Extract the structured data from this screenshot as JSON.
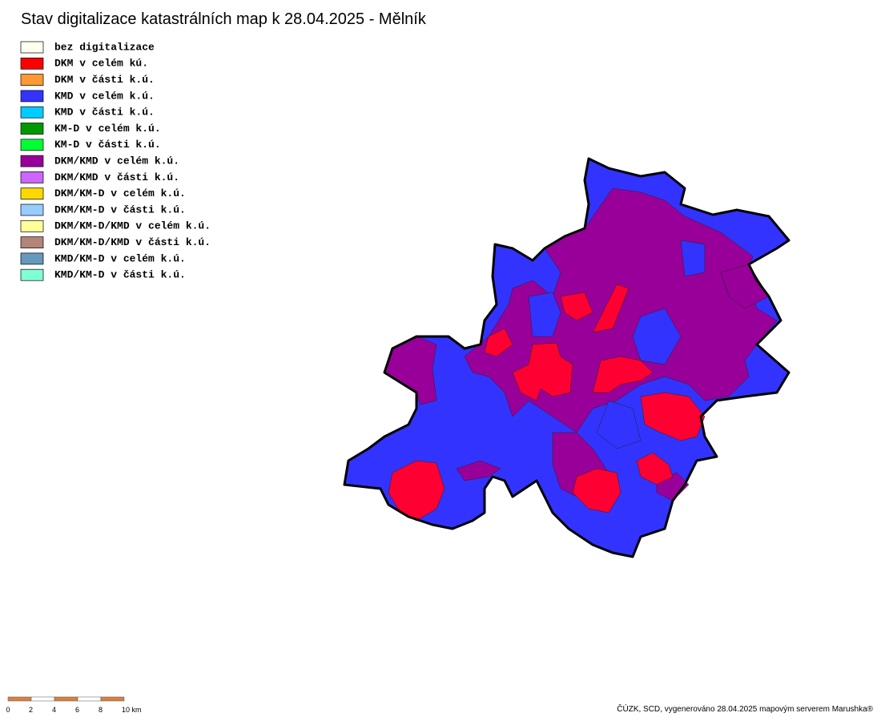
{
  "title": "Stav digitalizace katastrálních map k 28.04.2025 - Mělník",
  "legend": [
    {
      "label": "bez digitalizace",
      "color": "#fffff0"
    },
    {
      "label": "DKM v celém kú.",
      "color": "#ff0000"
    },
    {
      "label": "DKM v části k.ú.",
      "color": "#ff9933"
    },
    {
      "label": "KMD v celém k.ú.",
      "color": "#3333ff"
    },
    {
      "label": "KMD v části k.ú.",
      "color": "#00ccff"
    },
    {
      "label": "KM-D v celém k.ú.",
      "color": "#009900"
    },
    {
      "label": "KM-D v části k.ú.",
      "color": "#00ff33"
    },
    {
      "label": "DKM/KMD v celém k.ú.",
      "color": "#990099"
    },
    {
      "label": "DKM/KMD v části k.ú.",
      "color": "#cc66ff"
    },
    {
      "label": "DKM/KM-D v celém k.ú.",
      "color": "#ffd700"
    },
    {
      "label": "DKM/KM-D v části k.ú.",
      "color": "#99ccff"
    },
    {
      "label": "DKM/KM-D/KMD v celém k.ú.",
      "color": "#ffff99"
    },
    {
      "label": "DKM/KM-D/KMD v části k.ú.",
      "color": "#b3847a"
    },
    {
      "label": "KMD/KM-D v celém k.ú.",
      "color": "#6699bb"
    },
    {
      "label": "KMD/KM-D v části k.ú.",
      "color": "#80ffd4"
    }
  ],
  "scale_bar": {
    "labels": [
      "0",
      "2",
      "4",
      "6",
      "8",
      "10 km"
    ]
  },
  "footer": "ČÚZK, SCD, vygenerováno 28.04.2025 mapovým serverem Marushka®"
}
